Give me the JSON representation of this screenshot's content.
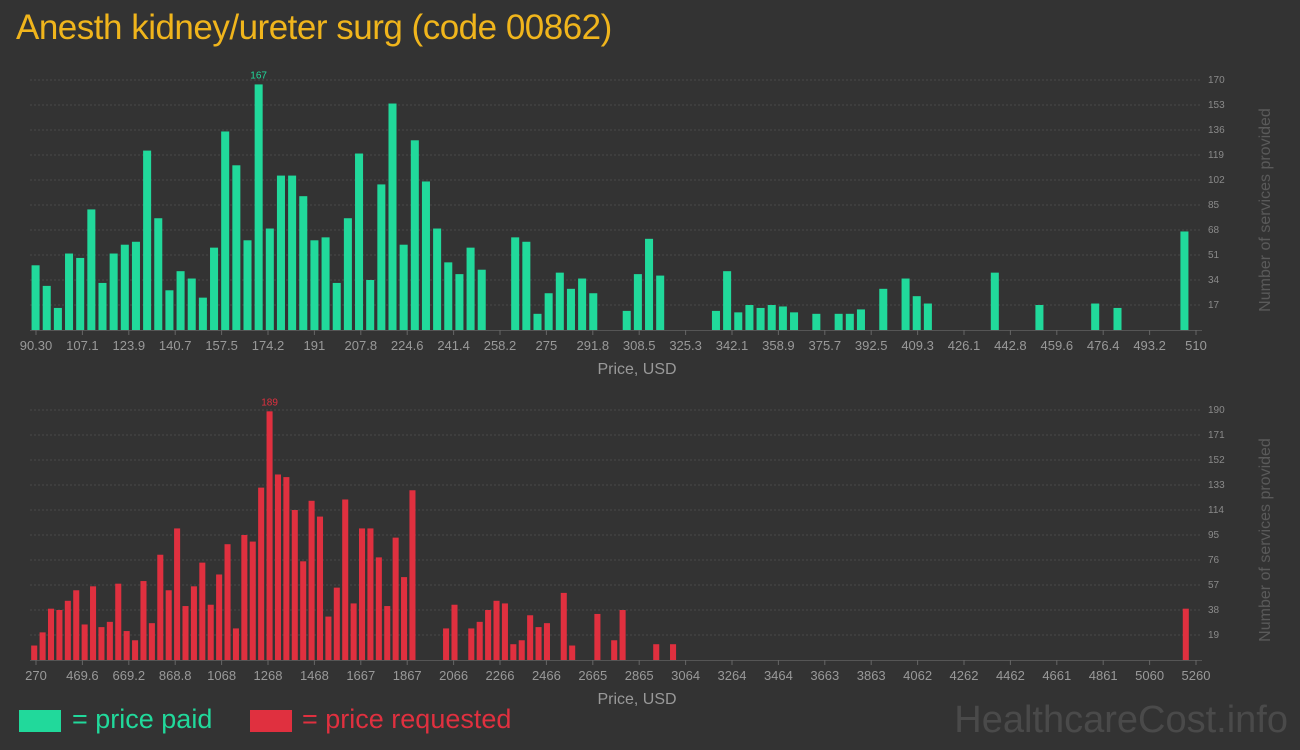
{
  "title": "Anesth kidney/ureter surg (code 00862)",
  "colors": {
    "paid": "#21d99b",
    "requested": "#e0303f",
    "title": "#f0b51c",
    "background": "#333333"
  },
  "chart_data": [
    {
      "type": "bar",
      "name": "price paid",
      "xlabel": "Price, USD",
      "ylabel": "Number of services provided",
      "xlim": [
        90.3,
        510
      ],
      "ylim": [
        0,
        170
      ],
      "yticks": [
        "17",
        "34",
        "51",
        "68",
        "85",
        "102",
        "119",
        "136",
        "153",
        "170"
      ],
      "xtick_labels": [
        "90.30",
        "107.1",
        "123.9",
        "140.7",
        "157.5",
        "174.2",
        "191",
        "207.8",
        "224.6",
        "241.4",
        "258.2",
        "275",
        "291.8",
        "308.5",
        "325.3",
        "342.1",
        "358.9",
        "375.7",
        "392.5",
        "409.3",
        "426.1",
        "442.8",
        "459.6",
        "476.4",
        "493.2",
        "510"
      ],
      "peak_label": "167",
      "values": [
        44,
        30,
        15,
        52,
        49,
        82,
        32,
        52,
        58,
        60,
        122,
        76,
        27,
        40,
        35,
        22,
        56,
        135,
        112,
        61,
        167,
        69,
        105,
        105,
        91,
        61,
        63,
        32,
        76,
        120,
        34,
        99,
        154,
        58,
        129,
        101,
        69,
        46,
        38,
        56,
        41,
        0,
        0,
        63,
        60,
        11,
        25,
        39,
        28,
        35,
        25,
        0,
        0,
        13,
        38,
        62,
        37,
        0,
        0,
        0,
        0,
        13,
        40,
        12,
        17,
        15,
        17,
        16,
        12,
        0,
        11,
        0,
        11,
        11,
        14,
        0,
        28,
        0,
        35,
        23,
        18,
        0,
        0,
        0,
        0,
        0,
        39,
        0,
        0,
        0,
        17,
        0,
        0,
        0,
        0,
        18,
        0,
        15,
        0,
        0,
        0,
        0,
        0,
        67
      ]
    },
    {
      "type": "bar",
      "name": "price requested",
      "xlabel": "Price, USD",
      "ylabel": "Number of services provided",
      "xlim": [
        270,
        5260
      ],
      "ylim": [
        0,
        190
      ],
      "yticks": [
        "19",
        "38",
        "57",
        "76",
        "95",
        "114",
        "133",
        "152",
        "171",
        "190"
      ],
      "xtick_labels": [
        "270",
        "469.6",
        "669.2",
        "868.8",
        "1068",
        "1268",
        "1468",
        "1667",
        "1867",
        "2066",
        "2266",
        "2466",
        "2665",
        "2865",
        "3064",
        "3264",
        "3464",
        "3663",
        "3863",
        "4062",
        "4262",
        "4462",
        "4661",
        "4861",
        "5060",
        "5260"
      ],
      "peak_label": "189",
      "values": [
        11,
        21,
        39,
        38,
        45,
        53,
        27,
        56,
        25,
        29,
        58,
        22,
        15,
        60,
        28,
        80,
        53,
        100,
        41,
        56,
        74,
        42,
        65,
        88,
        24,
        95,
        90,
        131,
        189,
        141,
        139,
        114,
        75,
        121,
        109,
        33,
        55,
        122,
        43,
        100,
        100,
        78,
        41,
        93,
        63,
        129,
        0,
        0,
        0,
        24,
        42,
        0,
        24,
        29,
        38,
        45,
        43,
        12,
        15,
        34,
        25,
        28,
        0,
        51,
        11,
        0,
        0,
        35,
        0,
        15,
        38,
        0,
        0,
        0,
        12,
        0,
        12,
        0,
        0,
        0,
        0,
        0,
        0,
        0,
        0,
        0,
        0,
        0,
        0,
        0,
        0,
        0,
        0,
        0,
        0,
        0,
        0,
        0,
        0,
        0,
        0,
        0,
        0,
        0,
        0,
        0,
        0,
        0,
        0,
        0,
        0,
        0,
        0,
        0,
        0,
        0,
        0,
        0,
        0,
        0,
        0,
        0,
        0,
        0,
        0,
        0,
        0,
        0,
        0,
        0,
        0,
        0,
        0,
        0,
        0,
        0,
        0,
        39
      ]
    }
  ],
  "legend": [
    {
      "label": "= price paid",
      "color": "#21d99b"
    },
    {
      "label": "= price requested",
      "color": "#e0303f"
    }
  ],
  "watermark": "HealthcareCost.info"
}
